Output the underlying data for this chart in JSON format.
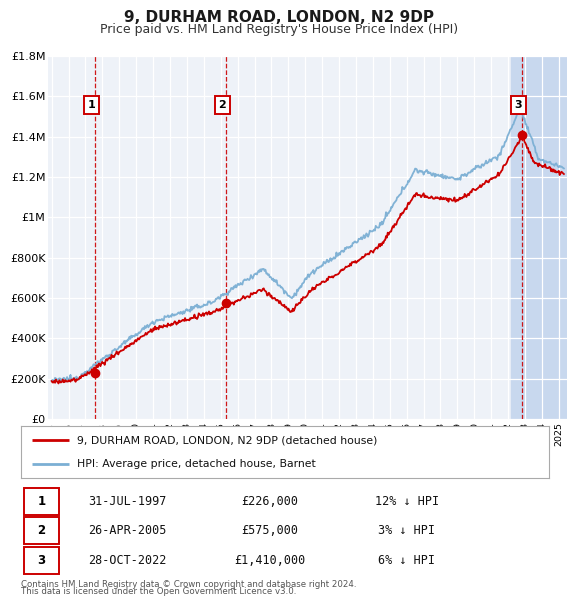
{
  "title": "9, DURHAM ROAD, LONDON, N2 9DP",
  "subtitle": "Price paid vs. HM Land Registry's House Price Index (HPI)",
  "title_fontsize": 11,
  "subtitle_fontsize": 9,
  "background_color": "#ffffff",
  "plot_bg_color": "#eef2f8",
  "grid_color": "#ffffff",
  "ylim": [
    0,
    1800000
  ],
  "xlim_start": 1994.8,
  "xlim_end": 2025.5,
  "ytick_labels": [
    "£0",
    "£200K",
    "£400K",
    "£600K",
    "£800K",
    "£1M",
    "£1.2M",
    "£1.4M",
    "£1.6M",
    "£1.8M"
  ],
  "ytick_values": [
    0,
    200000,
    400000,
    600000,
    800000,
    1000000,
    1200000,
    1400000,
    1600000,
    1800000
  ],
  "sale_color": "#cc0000",
  "hpi_color": "#7bafd4",
  "sale_label": "9, DURHAM ROAD, LONDON, N2 9DP (detached house)",
  "hpi_label": "HPI: Average price, detached house, Barnet",
  "sales": [
    {
      "num": 1,
      "date_num": 1997.58,
      "price": 226000,
      "label": "31-JUL-1997",
      "price_str": "£226,000",
      "hpi_str": "12% ↓ HPI"
    },
    {
      "num": 2,
      "date_num": 2005.32,
      "price": 575000,
      "label": "26-APR-2005",
      "price_str": "£575,000",
      "hpi_str": "3% ↓ HPI"
    },
    {
      "num": 3,
      "date_num": 2022.83,
      "price": 1410000,
      "label": "28-OCT-2022",
      "price_str": "£1,410,000",
      "hpi_str": "6% ↓ HPI"
    }
  ],
  "footnote1": "Contains HM Land Registry data © Crown copyright and database right 2024.",
  "footnote2": "This data is licensed under the Open Government Licence v3.0.",
  "sale_dot_color": "#cc0000",
  "vline_color": "#cc0000",
  "sale_num_box_color": "#cc0000",
  "shade_start": 2022.2,
  "shade_end": 2025.5,
  "shade_color": "#c8d8ee"
}
